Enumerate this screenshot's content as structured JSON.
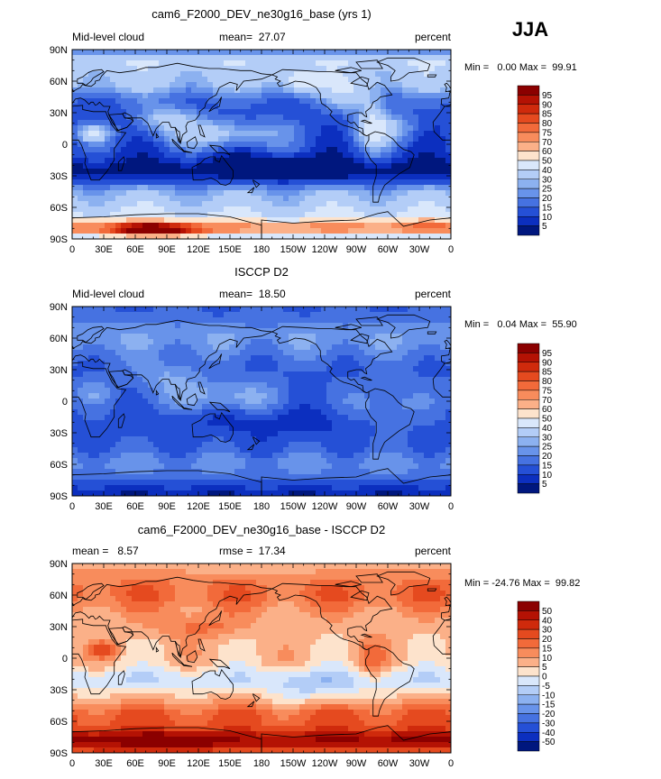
{
  "season_label": "JJA",
  "chart_data": [
    {
      "type": "heatmap",
      "title": "cam6_F2000_DEV_ne30g16_base (yrs 1)",
      "left_label": "Mid-level cloud",
      "center_label": "mean=  27.07",
      "right_label": "percent",
      "stats_text": "Min =   0.00 Max =  99.91",
      "x_ticks": [
        "0",
        "30E",
        "60E",
        "90E",
        "120E",
        "150E",
        "180",
        "150W",
        "120W",
        "90W",
        "60W",
        "30W",
        "0"
      ],
      "y_ticks": [
        "90N",
        "60N",
        "30N",
        "0",
        "30S",
        "60S",
        "90S"
      ],
      "levels": [
        "95",
        "90",
        "85",
        "80",
        "75",
        "70",
        "60",
        "50",
        "40",
        "30",
        "25",
        "20",
        "15",
        "10",
        "5"
      ],
      "colors": [
        "#8b0000",
        "#b41204",
        "#cf2a0c",
        "#e54a1f",
        "#f26a3a",
        "#f88c5c",
        "#fbb088",
        "#fde3cc",
        "#d9e7fb",
        "#b3cdf7",
        "#8cb1f0",
        "#6893ea",
        "#4672e1",
        "#2550d6",
        "#0c2fbf",
        "#00177e"
      ],
      "field": "model"
    },
    {
      "type": "heatmap",
      "title": "ISCCP D2",
      "left_label": "Mid-level cloud",
      "center_label": "mean=  18.50",
      "right_label": "percent",
      "stats_text": "Min =   0.04 Max =  55.90",
      "x_ticks": [
        "0",
        "30E",
        "60E",
        "90E",
        "120E",
        "150E",
        "180",
        "150W",
        "120W",
        "90W",
        "60W",
        "30W",
        "0"
      ],
      "y_ticks": [
        "90N",
        "60N",
        "30N",
        "0",
        "30S",
        "60S",
        "90S"
      ],
      "levels": [
        "95",
        "90",
        "85",
        "80",
        "75",
        "70",
        "60",
        "50",
        "40",
        "30",
        "25",
        "20",
        "15",
        "10",
        "5"
      ],
      "colors": [
        "#8b0000",
        "#b41204",
        "#cf2a0c",
        "#e54a1f",
        "#f26a3a",
        "#f88c5c",
        "#fbb088",
        "#fde3cc",
        "#d9e7fb",
        "#b3cdf7",
        "#8cb1f0",
        "#6893ea",
        "#4672e1",
        "#2550d6",
        "#0c2fbf",
        "#00177e"
      ],
      "field": "obs"
    },
    {
      "type": "heatmap",
      "title": "cam6_F2000_DEV_ne30g16_base - ISCCP D2",
      "left_label": "mean =   8.57",
      "center_label": "rmse =  17.34",
      "right_label": "percent",
      "stats_text": "Min = -24.76 Max =  99.82",
      "x_ticks": [
        "0",
        "30E",
        "60E",
        "90E",
        "120E",
        "150E",
        "180",
        "150W",
        "120W",
        "90W",
        "60W",
        "30W",
        "0"
      ],
      "y_ticks": [
        "90N",
        "60N",
        "30N",
        "0",
        "30S",
        "60S",
        "90S"
      ],
      "levels": [
        "50",
        "40",
        "30",
        "20",
        "15",
        "10",
        "5",
        "0",
        "-5",
        "-10",
        "-15",
        "-20",
        "-30",
        "-40",
        "-50"
      ],
      "colors": [
        "#8b0000",
        "#b41204",
        "#cf2a0c",
        "#e54a1f",
        "#f26a3a",
        "#f88c5c",
        "#fbb088",
        "#fde3cc",
        "#d9e7fb",
        "#b3cdf7",
        "#8cb1f0",
        "#6893ea",
        "#4672e1",
        "#2550d6",
        "#0c2fbf",
        "#00177e"
      ],
      "field": "diff"
    }
  ]
}
